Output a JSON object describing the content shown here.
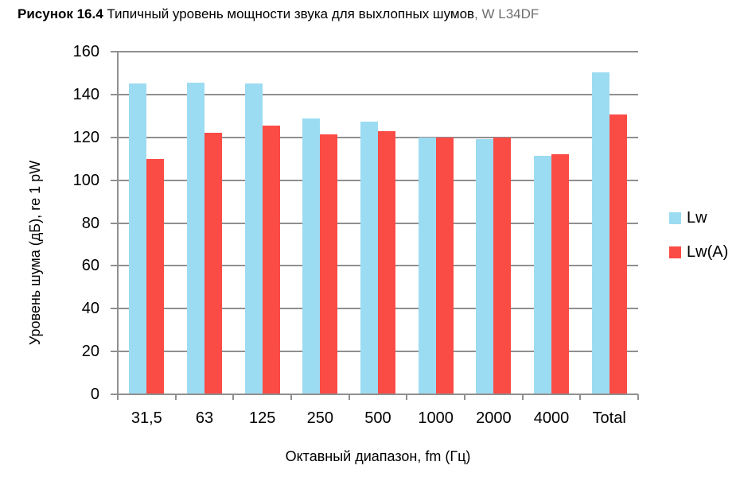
{
  "title": {
    "figure_label": "Рисунок 16.4",
    "text": " Типичный уровень мощности звука для выхлопных шумов",
    "suffix": ", W L34DF"
  },
  "colors": {
    "lw": "#9CDCF2",
    "lwa": "#FB4B45",
    "grid": "#8F8F8F",
    "axis": "#8F8F8F",
    "title_suffix_gray": "#6E6E6E"
  },
  "chart_data": {
    "type": "bar",
    "title": "",
    "categories": [
      "31,5",
      "63",
      "125",
      "250",
      "500",
      "1000",
      "2000",
      "4000",
      "Total"
    ],
    "series": [
      {
        "name": "Lw",
        "color": "#9CDCF2",
        "values": [
          145,
          145.5,
          145,
          129,
          127.5,
          120,
          119,
          111.5,
          150.5
        ]
      },
      {
        "name": "Lw(A)",
        "color": "#FB4B45",
        "values": [
          110,
          122,
          125.5,
          121.5,
          123,
          120,
          120,
          112,
          130.5
        ]
      }
    ],
    "xlabel": "Октавный диапазон, fm (Гц)",
    "ylabel": "Уровень шума (дБ), re 1 pW",
    "ylim": [
      0,
      160
    ],
    "ytick_step": 20,
    "grid": true,
    "legend_position": "right"
  }
}
